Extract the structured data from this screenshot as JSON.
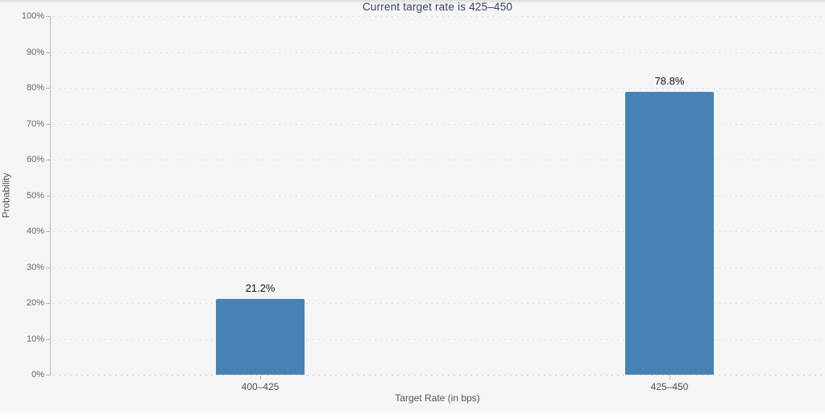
{
  "chart_data": {
    "type": "bar",
    "title": "Current target rate is 425–450",
    "categories": [
      "400–425",
      "425–450"
    ],
    "values": [
      21.2,
      78.8
    ],
    "value_labels": [
      "21.2%",
      "78.8%"
    ],
    "xlabel": "Target Rate (in bps)",
    "ylabel": "Probability",
    "ylim": [
      0,
      100
    ],
    "ytick_step": 10,
    "ytick_labels": [
      "0%",
      "10%",
      "20%",
      "30%",
      "40%",
      "50%",
      "60%",
      "70%",
      "80%",
      "90%",
      "100%"
    ],
    "grid": "horizontal-dotted",
    "legend_position": "none",
    "colors": {
      "bar": "#4682b4",
      "title": "#333f66",
      "axis_title": "#555555",
      "tick_label": "#666666",
      "category_label": "#4d4d4d",
      "value_label": "#141414",
      "gridline": "#dfdfdf",
      "baseline": "#c9c9c9",
      "axis_line": "#b8b8b8",
      "background": "#f5f5f6"
    }
  }
}
